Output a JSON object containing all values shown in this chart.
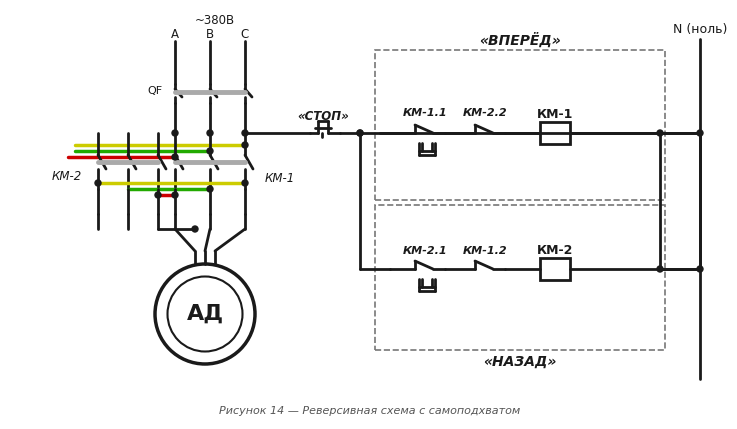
{
  "title": "Рисунок 14 — Реверсивная схема с самоподхватом",
  "bg_color": "#ffffff",
  "line_color": "#1a1a1a",
  "dashed_box_color": "#777777",
  "red_color": "#cc0000",
  "green_color": "#22aa00",
  "yellow_color": "#cccc00",
  "gray_color": "#aaaaaa",
  "label_vpered": "«ВПЕРЁД»",
  "label_nazad": "«НАЗАД»",
  "label_stop": "«СТОП»",
  "label_n": "N (ноль)",
  "label_380": "~380В",
  "label_A": "A",
  "label_B": "B",
  "label_C": "C",
  "label_QF": "QF",
  "label_KM1": "КМ-1",
  "label_KM2": "КМ-2",
  "label_KM11": "КМ-1.1",
  "label_KM12": "КМ-1.2",
  "label_KM21": "КМ-2.1",
  "label_KM22": "КМ-2.2",
  "label_KM1_coil": "КМ-1",
  "label_KM2_coil": "КМ-2",
  "label_AD": "АД"
}
